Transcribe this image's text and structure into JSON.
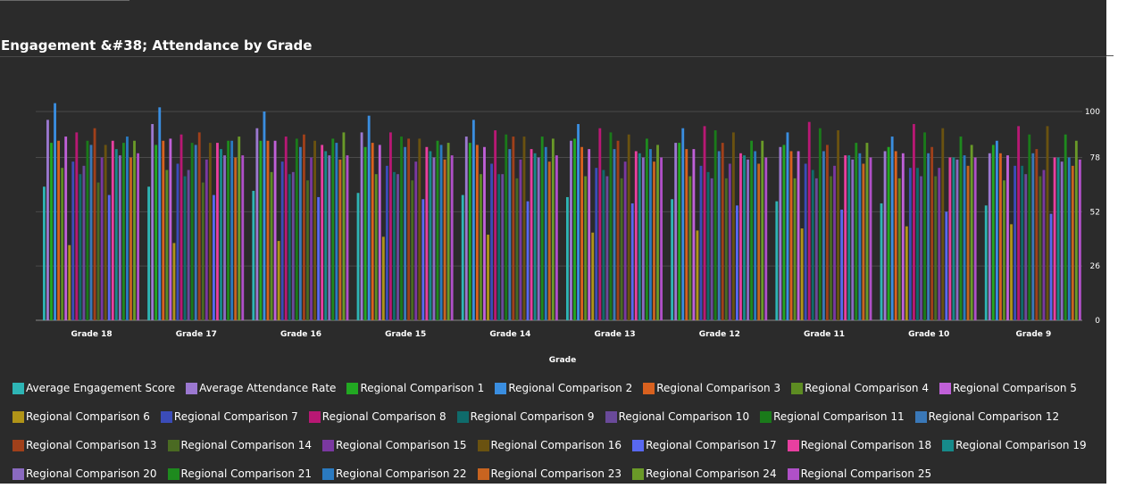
{
  "page": {
    "title": "Engagement &#38; Attendance by Grade"
  },
  "chart_data": {
    "type": "bar",
    "xlabel": "Grade",
    "ylabel": "",
    "ylim": [
      0,
      104
    ],
    "yticks": [
      0,
      26,
      52,
      78,
      100
    ],
    "grid": true,
    "legend": "bottom",
    "categories": [
      "Grade 18",
      "Grade 17",
      "Grade 16",
      "Grade 15",
      "Grade 14",
      "Grade 13",
      "Grade 12",
      "Grade 11",
      "Grade 10",
      "Grade 9"
    ],
    "series": [
      {
        "name": "Average Engagement Score",
        "color": "#2eb5b5",
        "values": [
          64,
          64,
          62,
          61,
          60,
          59,
          58,
          57,
          56,
          55
        ]
      },
      {
        "name": "Average Attendance Rate",
        "color": "#9b78d0",
        "values": [
          96,
          94,
          92,
          90,
          88,
          86,
          85,
          83,
          81,
          80
        ]
      },
      {
        "name": "Regional Comparison 1",
        "color": "#22a822",
        "values": [
          85,
          84,
          86,
          83,
          85,
          87,
          85,
          84,
          83,
          84
        ]
      },
      {
        "name": "Regional Comparison 2",
        "color": "#3a8ee0",
        "values": [
          104,
          102,
          100,
          98,
          96,
          94,
          92,
          90,
          88,
          86
        ]
      },
      {
        "name": "Regional Comparison 3",
        "color": "#d8611f",
        "values": [
          86,
          86,
          86,
          85,
          84,
          83,
          82,
          81,
          81,
          80
        ]
      },
      {
        "name": "Regional Comparison 4",
        "color": "#5d8c22",
        "values": [
          73,
          72,
          71,
          70,
          70,
          69,
          69,
          68,
          68,
          67
        ]
      },
      {
        "name": "Regional Comparison 5",
        "color": "#c060d8",
        "values": [
          88,
          87,
          86,
          84,
          83,
          82,
          82,
          81,
          80,
          79
        ]
      },
      {
        "name": "Regional Comparison 6",
        "color": "#b09418",
        "values": [
          36,
          37,
          38,
          40,
          41,
          42,
          43,
          44,
          45,
          46
        ]
      },
      {
        "name": "Regional Comparison 7",
        "color": "#3b4cb8",
        "values": [
          76,
          75,
          76,
          74,
          75,
          73,
          74,
          75,
          73,
          74
        ]
      },
      {
        "name": "Regional Comparison 8",
        "color": "#b81874",
        "values": [
          90,
          89,
          88,
          90,
          91,
          92,
          93,
          95,
          94,
          93
        ]
      },
      {
        "name": "Regional Comparison 9",
        "color": "#0f6b6b",
        "values": [
          70,
          69,
          70,
          71,
          70,
          72,
          71,
          72,
          73,
          74
        ]
      },
      {
        "name": "Regional Comparison 10",
        "color": "#6a4a9a",
        "values": [
          74,
          72,
          71,
          70,
          70,
          69,
          68,
          68,
          69,
          70
        ]
      },
      {
        "name": "Regional Comparison 11",
        "color": "#1a7a1a",
        "values": [
          86,
          85,
          87,
          88,
          89,
          90,
          91,
          92,
          90,
          89
        ]
      },
      {
        "name": "Regional Comparison 12",
        "color": "#3a78b8",
        "values": [
          84,
          84,
          83,
          83,
          82,
          82,
          81,
          81,
          80,
          80
        ]
      },
      {
        "name": "Regional Comparison 13",
        "color": "#a0401a",
        "values": [
          92,
          90,
          89,
          87,
          88,
          86,
          85,
          84,
          83,
          82
        ]
      },
      {
        "name": "Regional Comparison 14",
        "color": "#4a6a22",
        "values": [
          66,
          66,
          67,
          67,
          68,
          68,
          68,
          69,
          69,
          69
        ]
      },
      {
        "name": "Regional Comparison 15",
        "color": "#7a38a0",
        "values": [
          78,
          77,
          78,
          76,
          77,
          76,
          75,
          74,
          73,
          72
        ]
      },
      {
        "name": "Regional Comparison 16",
        "color": "#6a5210",
        "values": [
          84,
          85,
          86,
          87,
          88,
          89,
          90,
          91,
          92,
          93
        ]
      },
      {
        "name": "Regional Comparison 17",
        "color": "#5868f0",
        "values": [
          60,
          60,
          59,
          58,
          57,
          56,
          55,
          53,
          52,
          51
        ]
      },
      {
        "name": "Regional Comparison 18",
        "color": "#e83fa0",
        "values": [
          86,
          85,
          84,
          83,
          82,
          81,
          80,
          79,
          78,
          78
        ]
      },
      {
        "name": "Regional Comparison 19",
        "color": "#168a8a",
        "values": [
          82,
          82,
          81,
          81,
          80,
          80,
          79,
          79,
          78,
          78
        ]
      },
      {
        "name": "Regional Comparison 20",
        "color": "#8a6ac0",
        "values": [
          79,
          79,
          79,
          78,
          78,
          78,
          77,
          77,
          77,
          76
        ]
      },
      {
        "name": "Regional Comparison 21",
        "color": "#1e8a1e",
        "values": [
          85,
          86,
          87,
          86,
          88,
          87,
          86,
          85,
          88,
          89
        ]
      },
      {
        "name": "Regional Comparison 22",
        "color": "#2a7ac0",
        "values": [
          88,
          86,
          85,
          84,
          83,
          82,
          81,
          80,
          79,
          78
        ]
      },
      {
        "name": "Regional Comparison 23",
        "color": "#c86420",
        "values": [
          78,
          78,
          77,
          77,
          76,
          76,
          75,
          75,
          74,
          74
        ]
      },
      {
        "name": "Regional Comparison 24",
        "color": "#6a9a28",
        "values": [
          86,
          88,
          90,
          85,
          87,
          84,
          86,
          85,
          84,
          86
        ]
      },
      {
        "name": "Regional Comparison 25",
        "color": "#b050c8",
        "values": [
          80,
          79,
          79,
          79,
          79,
          78,
          78,
          78,
          78,
          77
        ]
      }
    ]
  }
}
